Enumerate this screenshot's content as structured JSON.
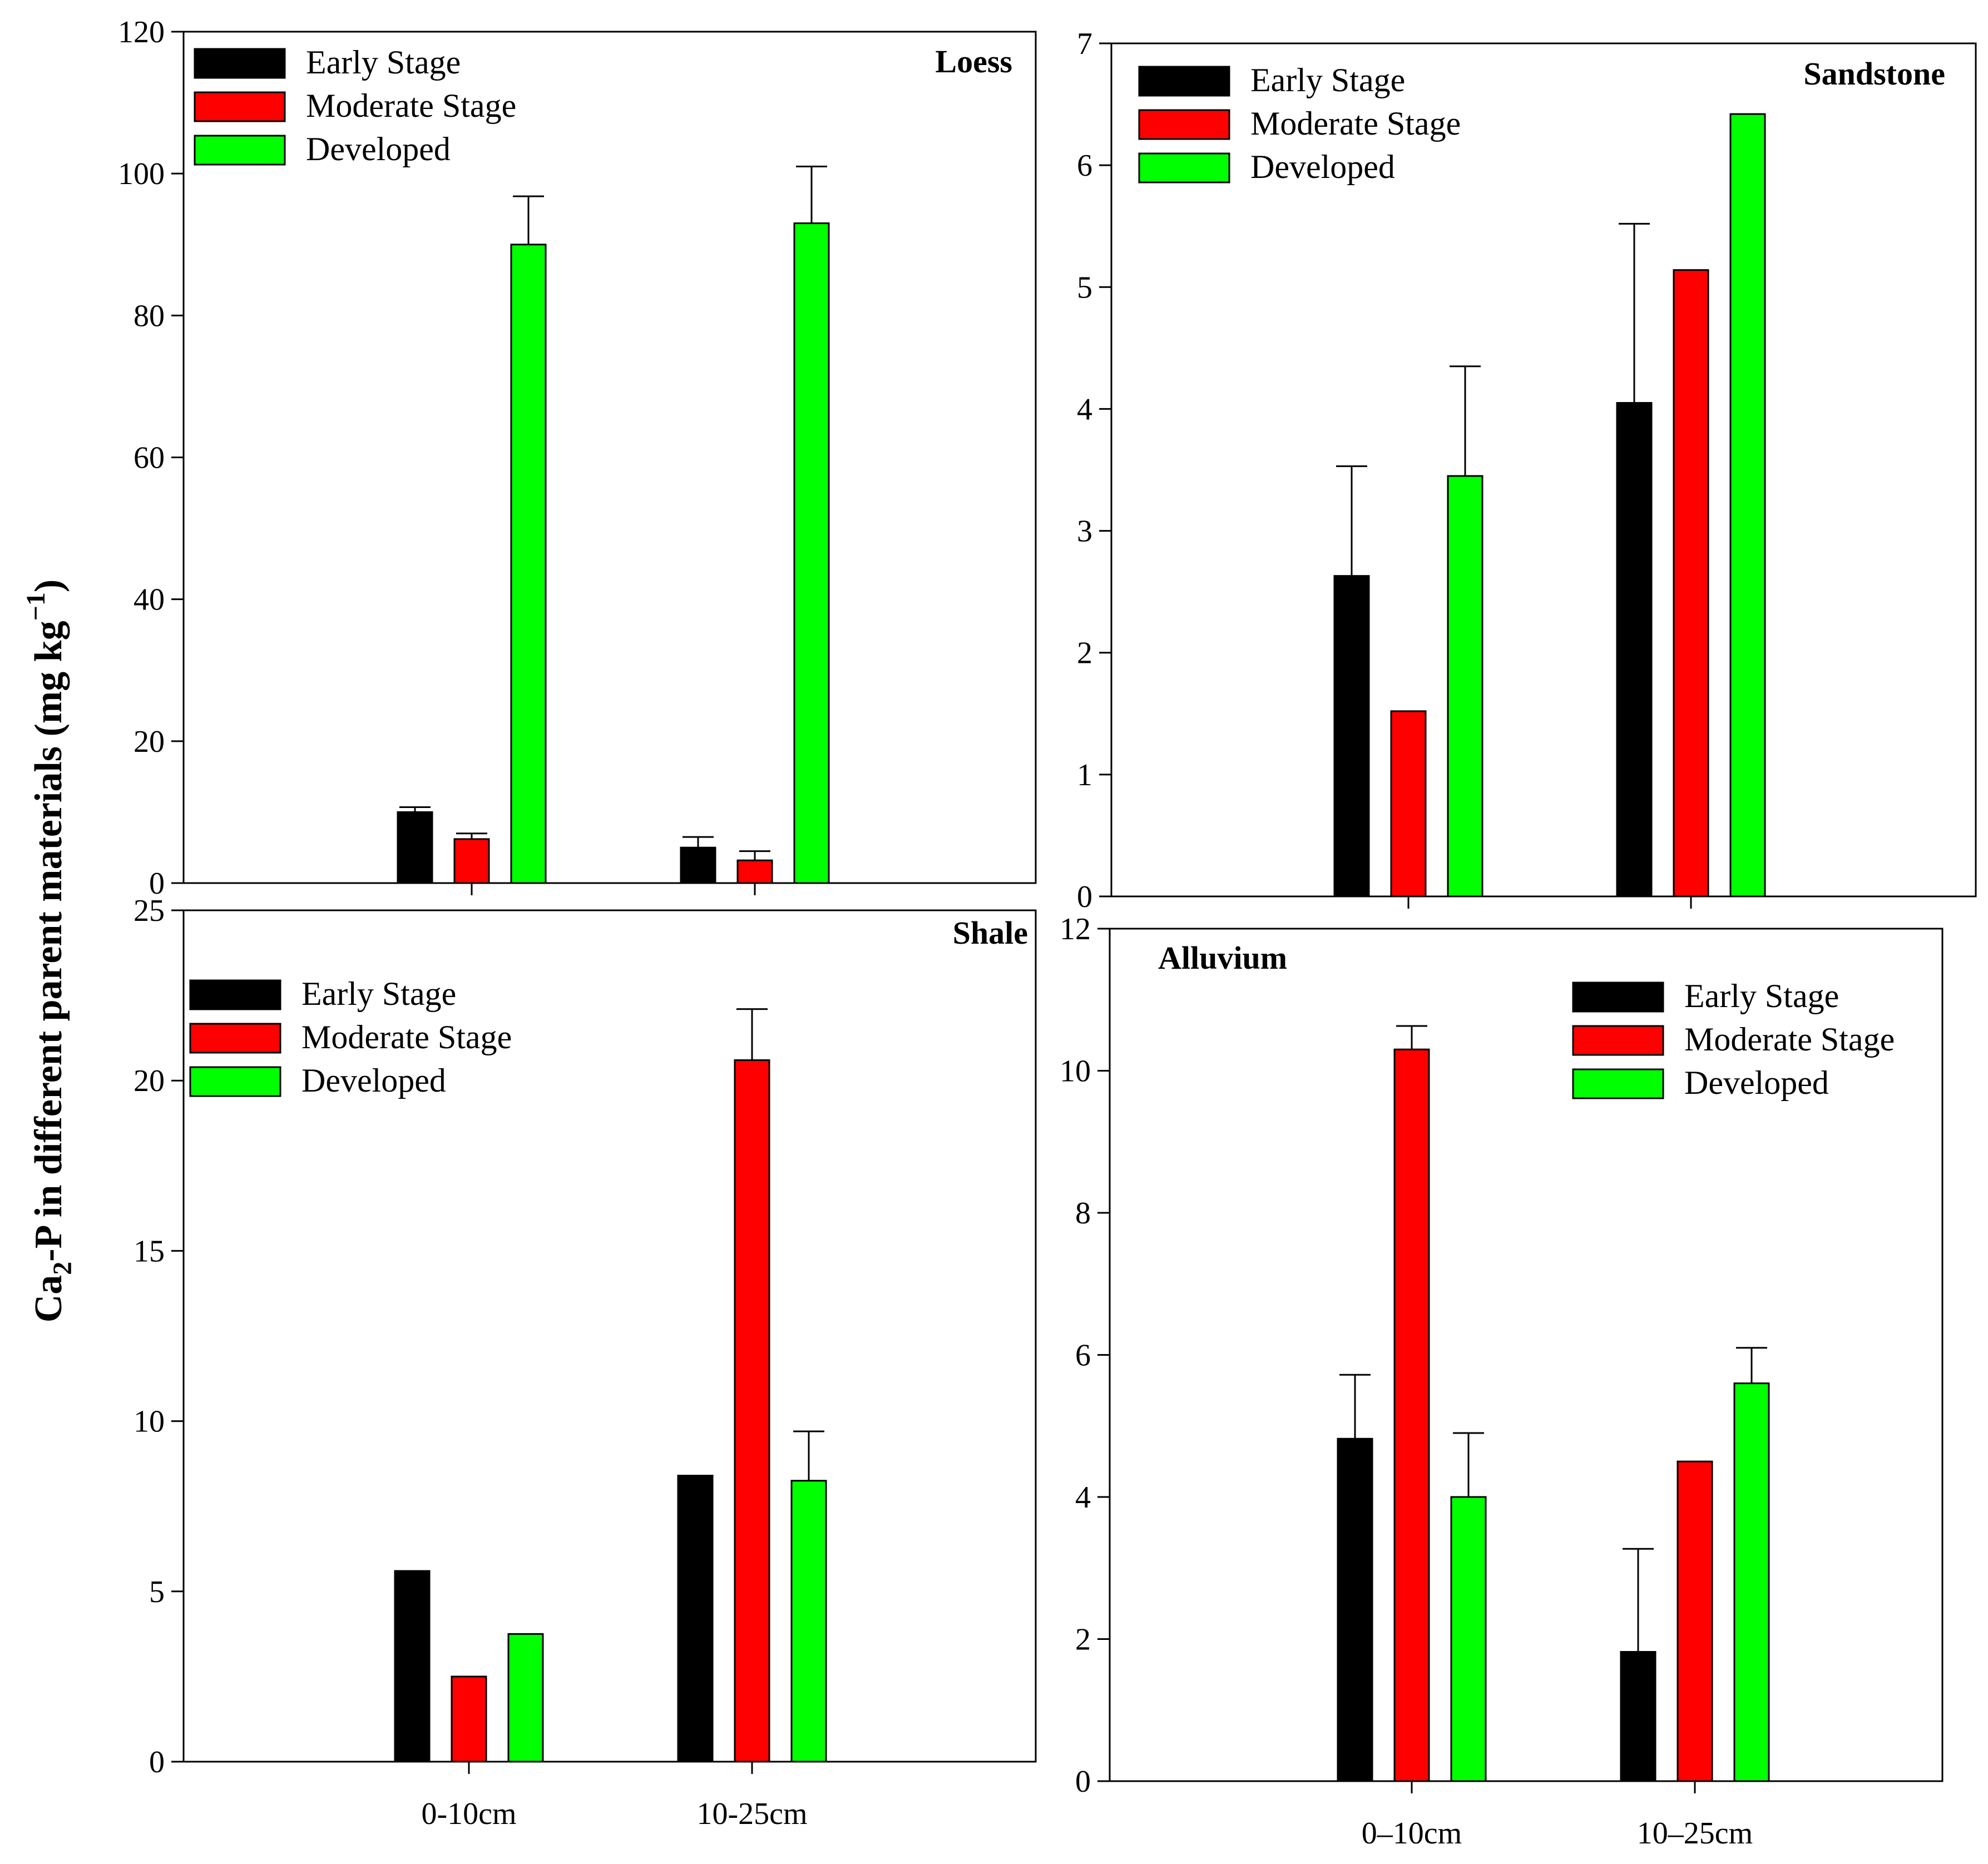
{
  "figure": {
    "ylabel_prefix": "Ca",
    "ylabel_sub": "2",
    "ylabel_mid": "-P in different parent materials (mg kg",
    "ylabel_sup": "−1",
    "ylabel_suffix": ")"
  },
  "colors": {
    "early": "#000000",
    "moderate": "#ff0000",
    "developed": "#00ff00"
  },
  "chart_data": [
    {
      "type": "bar",
      "title": "Loess",
      "legend_position": "top-left",
      "categories": [
        "0-10cm",
        "10-25cm"
      ],
      "show_category_labels": false,
      "ylim": [
        0,
        120
      ],
      "yticks": [
        0,
        20,
        40,
        60,
        80,
        100,
        120
      ],
      "series": [
        {
          "name": "Early Stage",
          "values": [
            10,
            5
          ],
          "errors": [
            0.7,
            1.5
          ]
        },
        {
          "name": "Moderate Stage",
          "values": [
            6.2,
            3.2
          ],
          "errors": [
            0.8,
            1.3
          ]
        },
        {
          "name": "Developed",
          "values": [
            90,
            93
          ],
          "errors": [
            6.8,
            8
          ]
        }
      ]
    },
    {
      "type": "bar",
      "title": "Sandstone",
      "legend_position": "top-left",
      "categories": [
        "0-10cm",
        "10-25cm"
      ],
      "show_category_labels": false,
      "ylim": [
        0,
        7
      ],
      "yticks": [
        0,
        1,
        2,
        3,
        4,
        5,
        6,
        7
      ],
      "series": [
        {
          "name": "Early Stage",
          "values": [
            2.63,
            4.05
          ],
          "errors": [
            0.9,
            1.47
          ]
        },
        {
          "name": "Moderate Stage",
          "values": [
            1.52,
            5.14
          ],
          "errors": [
            0,
            0
          ]
        },
        {
          "name": "Developed",
          "values": [
            3.45,
            6.42
          ],
          "errors": [
            0.9,
            0
          ]
        }
      ]
    },
    {
      "type": "bar",
      "title": "Shale",
      "legend_position": "top-left",
      "categories": [
        "0-10cm",
        "10-25cm"
      ],
      "show_category_labels": true,
      "ylim": [
        0,
        25
      ],
      "yticks": [
        0,
        5,
        10,
        15,
        20,
        25
      ],
      "series": [
        {
          "name": "Early Stage",
          "values": [
            5.6,
            8.4
          ],
          "errors": [
            0,
            0
          ]
        },
        {
          "name": "Moderate Stage",
          "values": [
            2.5,
            20.6
          ],
          "errors": [
            0,
            1.5
          ]
        },
        {
          "name": "Developed",
          "values": [
            3.75,
            8.25
          ],
          "errors": [
            0,
            1.45
          ]
        }
      ]
    },
    {
      "type": "bar",
      "title": "Alluvium",
      "legend_position": "top-right",
      "categories": [
        "0–10cm",
        "10–25cm"
      ],
      "show_category_labels": true,
      "ylim": [
        0,
        12
      ],
      "yticks": [
        0,
        2,
        4,
        6,
        8,
        10,
        12
      ],
      "series": [
        {
          "name": "Early Stage",
          "values": [
            4.82,
            1.82
          ],
          "errors": [
            0.9,
            1.45
          ]
        },
        {
          "name": "Moderate Stage",
          "values": [
            10.3,
            4.5
          ],
          "errors": [
            0.33,
            0
          ]
        },
        {
          "name": "Developed",
          "values": [
            4.0,
            5.6
          ],
          "errors": [
            0.9,
            0.5
          ]
        }
      ]
    }
  ]
}
